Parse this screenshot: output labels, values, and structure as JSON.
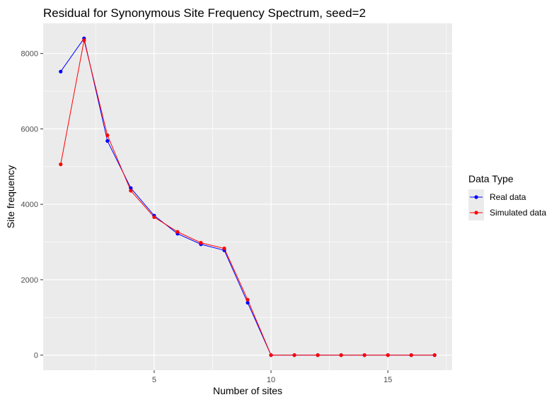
{
  "chart_data": {
    "type": "line",
    "title": "Residual for Synonymous Site Frequency Spectrum, seed=2",
    "xlabel": "Number of sites",
    "ylabel": "Site frequency",
    "xlim": [
      0.25,
      17.75
    ],
    "ylim": [
      -400,
      8800
    ],
    "x_ticks": [
      5,
      10,
      15
    ],
    "y_ticks": [
      0,
      2000,
      4000,
      6000,
      8000
    ],
    "x_tick_labels": [
      "5",
      "10",
      "15"
    ],
    "y_tick_labels": [
      "0",
      "2000",
      "4000",
      "6000",
      "8000"
    ],
    "grid": true,
    "legend": {
      "title": "Data Type",
      "position": "right"
    },
    "x": [
      1,
      2,
      3,
      4,
      5,
      6,
      7,
      8,
      9,
      10,
      11,
      12,
      13,
      14,
      15,
      16,
      17
    ],
    "series": [
      {
        "name": "Real data",
        "color": "#0000ff",
        "values": [
          7520,
          8400,
          5680,
          4430,
          3700,
          3220,
          2940,
          2780,
          1390,
          0,
          0,
          0,
          0,
          0,
          0,
          0,
          0
        ]
      },
      {
        "name": "Simulated data",
        "color": "#ff0000",
        "values": [
          5060,
          8350,
          5830,
          4360,
          3660,
          3270,
          2980,
          2830,
          1470,
          0,
          0,
          0,
          0,
          0,
          0,
          0,
          0
        ]
      }
    ]
  }
}
